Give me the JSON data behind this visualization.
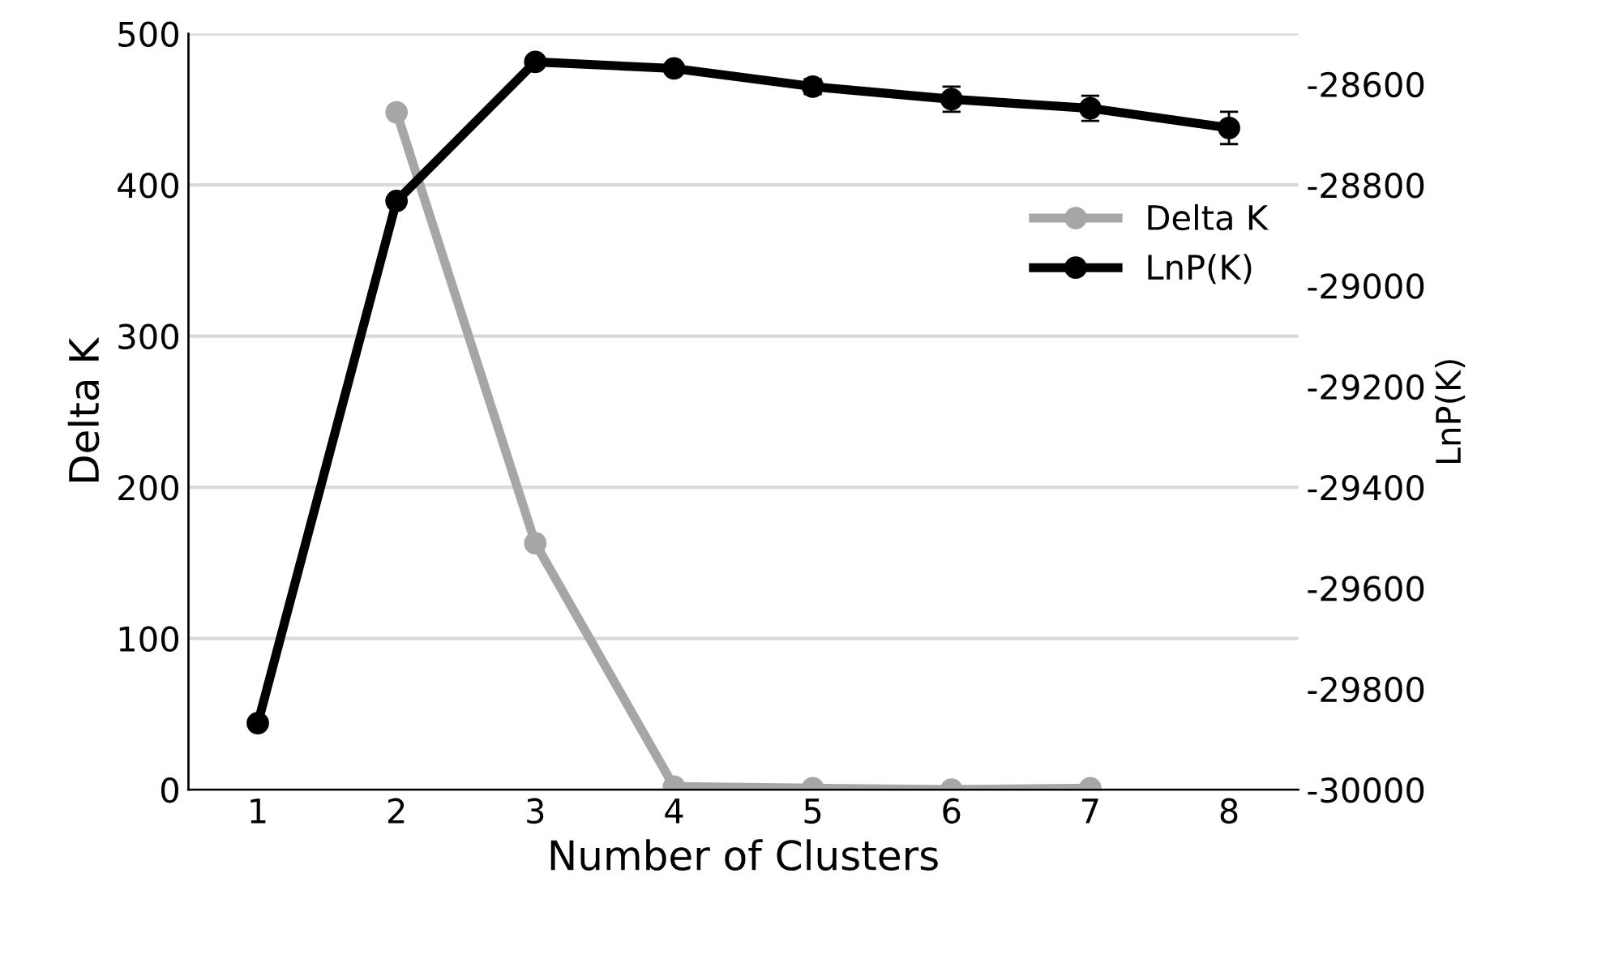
{
  "chart_data": {
    "type": "line",
    "categories": [
      "1",
      "2",
      "3",
      "4",
      "5",
      "6",
      "7",
      "8"
    ],
    "xlabel": "Number of Clusters",
    "ylabel": "Delta K",
    "y2label": "LnP(K)",
    "series": [
      {
        "name": "Delta K",
        "color": "#a6a6a6",
        "values": [
          null,
          448,
          163,
          2,
          1,
          0,
          1,
          null
        ]
      },
      {
        "name": "LnP(K)",
        "color": "#000000",
        "axis": "y2",
        "values": [
          -29868,
          -28832,
          -28556,
          -28569,
          -28605,
          -28630,
          -28648,
          -28687
        ],
        "errors": [
          null,
          null,
          null,
          null,
          15,
          25,
          25,
          32
        ]
      }
    ],
    "ylim": [
      0,
      500
    ],
    "yticks": [
      0,
      100,
      200,
      300,
      400,
      500
    ],
    "y2lim": [
      -30000,
      -28500
    ],
    "y2ticks": [
      -30000,
      -29800,
      -29600,
      -29400,
      -29200,
      -29000,
      -28800,
      -28600
    ],
    "grid": "y",
    "legend": "right",
    "marker": "circle",
    "line_style": "solid"
  }
}
